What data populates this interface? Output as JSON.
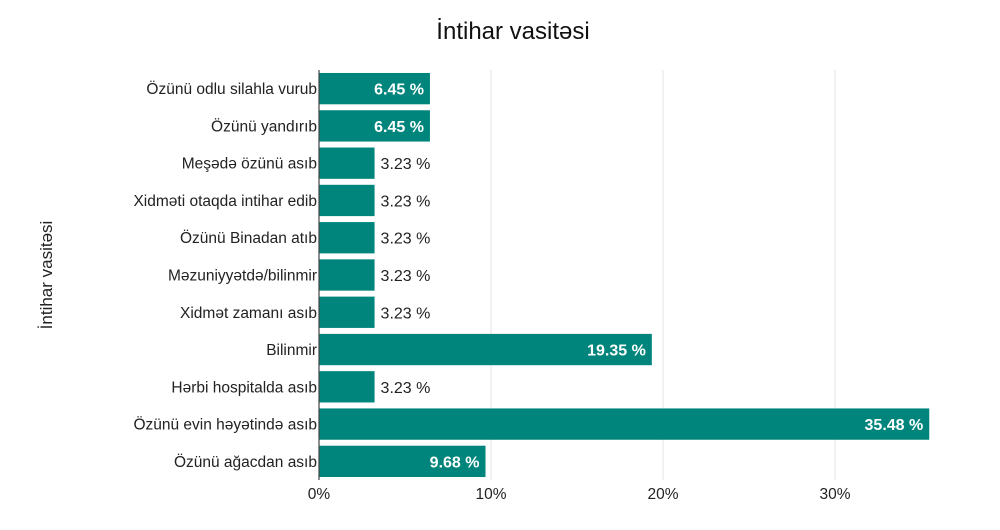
{
  "chart_data": {
    "type": "bar",
    "orientation": "horizontal",
    "title": "İntihar vasitəsi",
    "ylabel": "İntihar vasitəsi",
    "xlabel": "",
    "categories": [
      "Özünü odlu silahla vurub",
      "Özünü yandırıb",
      "Meşədə özünü asıb",
      "Xidməti otaqda intihar edib",
      "Özünü Binadan atıb",
      "Məzuniyyətdə/bilinmir",
      "Xidmət zamanı asıb",
      "Bilinmir",
      "Hərbi hospitalda asıb",
      "Özünü evin həyətində asıb",
      "Özünü ağacdan asıb"
    ],
    "values": [
      6.45,
      6.45,
      3.23,
      3.23,
      3.23,
      3.23,
      3.23,
      19.35,
      3.23,
      35.48,
      9.68
    ],
    "value_labels": [
      "6.45 %",
      "6.45 %",
      "3.23 %",
      "3.23 %",
      "3.23 %",
      "3.23 %",
      "3.23 %",
      "19.35 %",
      "3.23 %",
      "35.48 %",
      "9.68 %"
    ],
    "xticks": [
      0,
      10,
      20,
      30
    ],
    "xtick_labels": [
      "0%",
      "10%",
      "20%",
      "30%"
    ],
    "xlim": [
      0,
      37.5
    ],
    "grid": "vertical",
    "legend": "none",
    "bar_color": "#00857c"
  }
}
